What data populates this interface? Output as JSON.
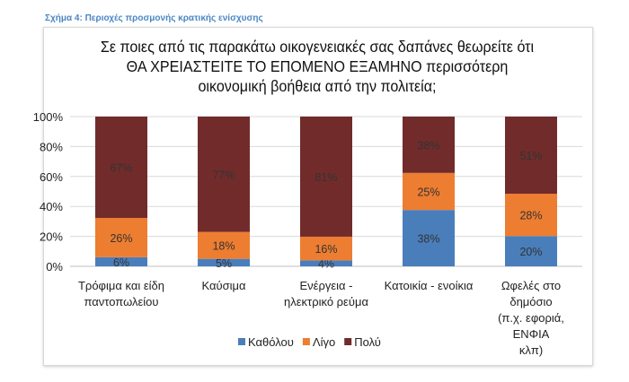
{
  "caption": "Σχήμα 4: Περιοχές προσμονής κρατικής ενίσχυσης",
  "chart_data": {
    "type": "bar",
    "stacked": true,
    "title_lines": [
      "Σε ποιες από τις παρακάτω οικογενειακές σας δαπάνες θεωρείτε ότι",
      "ΘΑ ΧΡΕΙΑΣΤΕΙΤΕ ΤΟ ΕΠΟΜΕΝΟ ΕΞΑΜΗΝΟ  περισσότερη",
      "οικονομική βοήθεια από την πολιτεία;"
    ],
    "categories": [
      [
        "Τρόφιμα και είδη",
        "παντοπωλείου"
      ],
      [
        "Καύσιμα"
      ],
      [
        "Ενέργεια -",
        "ηλεκτρικό ρεύμα"
      ],
      [
        "Κατοικία - ενοίκια"
      ],
      [
        "Ωφελές στο",
        "δημόσιο",
        "(π.χ. εφοριά,",
        "ΕΝΦΙΑ",
        "κλπ)"
      ]
    ],
    "series": [
      {
        "name": "Καθόλου",
        "color": "#4a7ebb",
        "values": [
          6,
          5,
          4,
          38,
          20
        ]
      },
      {
        "name": "Λίγο",
        "color": "#ed7d31",
        "values": [
          26,
          18,
          16,
          25,
          28
        ]
      },
      {
        "name": "Πολύ",
        "color": "#722b2b",
        "values": [
          67,
          77,
          81,
          38,
          51
        ]
      }
    ],
    "yticks": [
      "0%",
      "20%",
      "40%",
      "60%",
      "80%",
      "100%"
    ],
    "ylim": [
      0,
      100
    ],
    "grid": true,
    "legend": "bottom"
  }
}
